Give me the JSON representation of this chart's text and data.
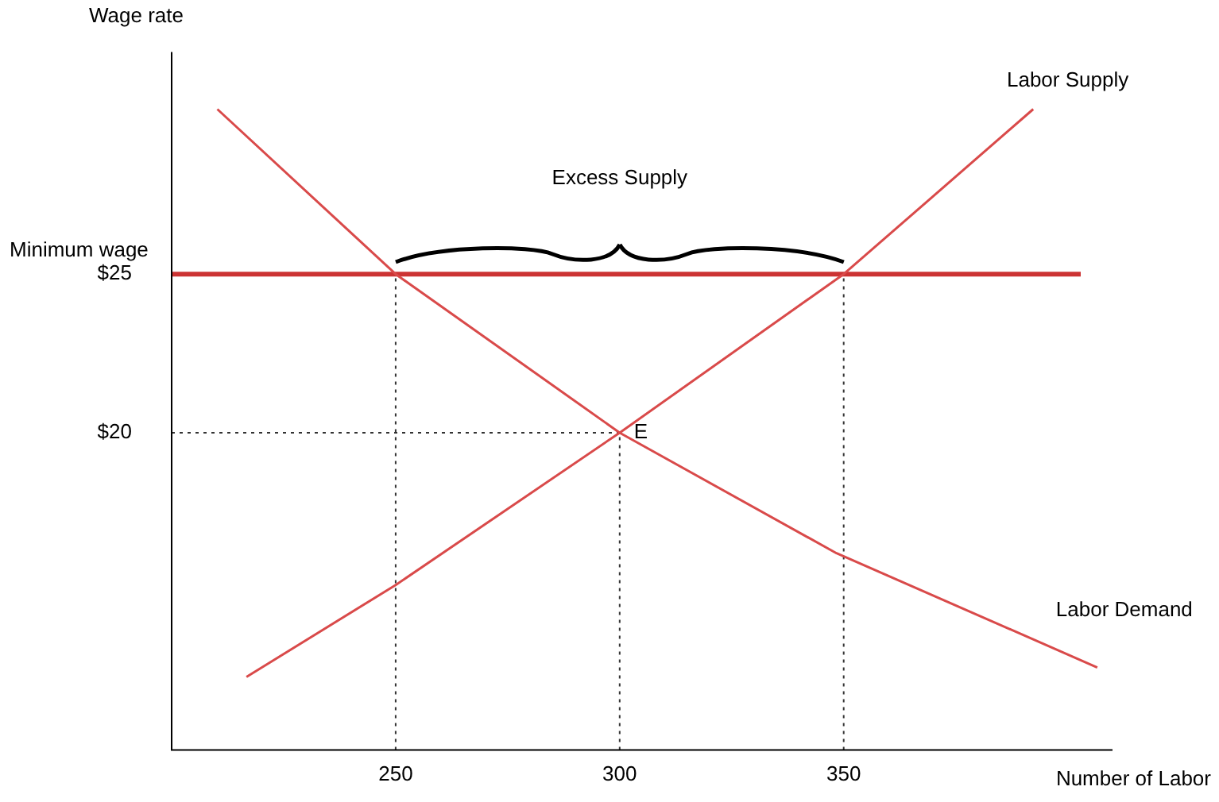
{
  "chart_data": {
    "type": "line",
    "xlabel": "Number of Labor",
    "ylabel": "Wage rate",
    "xlim": [
      200,
      410
    ],
    "ylim": [
      10,
      32
    ],
    "xticks": [
      250,
      300,
      350
    ],
    "yticks": [
      {
        "value": 20,
        "label": "$20"
      },
      {
        "value": 25,
        "label": "$25"
      }
    ],
    "grid": false,
    "legend": false,
    "marker": "none",
    "series": [
      {
        "name": "Labor Demand",
        "color": "#d94a4a",
        "x": [
          210.2,
          250,
          300,
          348.4,
          406.6
        ],
        "values": [
          30.2,
          25,
          20,
          16.2,
          12.6
        ]
      },
      {
        "name": "Labor Supply",
        "color": "#d94a4a",
        "x": [
          216.7,
          250,
          300,
          350,
          392.3
        ],
        "values": [
          12.3,
          15.2,
          20,
          25,
          30.2
        ]
      },
      {
        "color": "#333333",
        "line_style": "dotted",
        "x": [
          250,
          250
        ],
        "values": [
          10,
          25
        ]
      },
      {
        "color": "#333333",
        "line_style": "dotted",
        "x": [
          300,
          300
        ],
        "values": [
          10,
          20
        ]
      },
      {
        "color": "#333333",
        "line_style": "dotted",
        "x": [
          350,
          350
        ],
        "values": [
          10,
          25
        ]
      },
      {
        "color": "#333333",
        "line_style": "dotted",
        "x": [
          200,
          300
        ],
        "values": [
          20,
          20
        ]
      }
    ],
    "ref_lines": [
      {
        "axis": "y",
        "value": 25,
        "label": "Minimum wage",
        "color": "#cc3333"
      }
    ],
    "annotations": [
      "Excess Supply",
      {
        "text": "E",
        "x": 300,
        "y": 20
      }
    ]
  }
}
